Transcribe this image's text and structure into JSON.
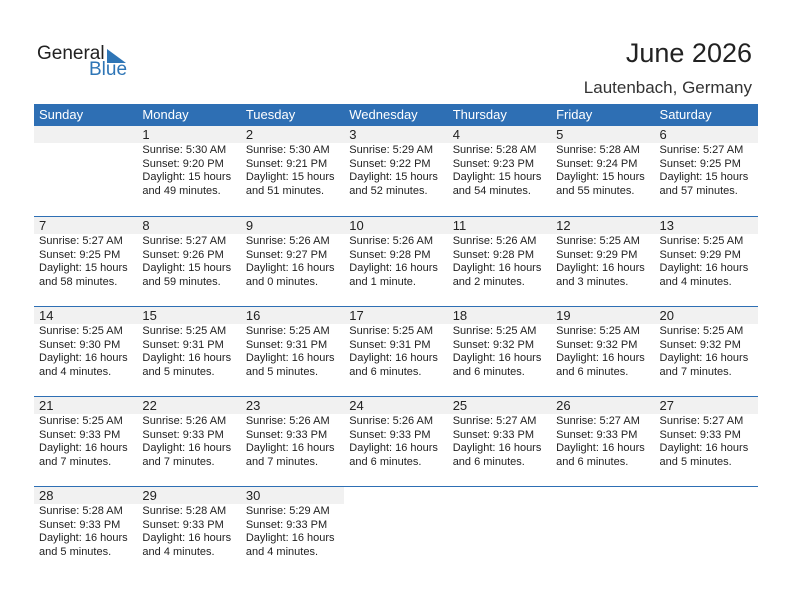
{
  "logo": {
    "line1": "General",
    "line2": "Blue"
  },
  "title": "June 2026",
  "location": "Lautenbach, Germany",
  "weekdays": [
    "Sunday",
    "Monday",
    "Tuesday",
    "Wednesday",
    "Thursday",
    "Friday",
    "Saturday"
  ],
  "first_weekday_offset": 1,
  "days": [
    {
      "d": "1",
      "sunrise": "Sunrise: 5:30 AM",
      "sunset": "Sunset: 9:20 PM",
      "daylight1": "Daylight: 15 hours",
      "daylight2": "and 49 minutes."
    },
    {
      "d": "2",
      "sunrise": "Sunrise: 5:30 AM",
      "sunset": "Sunset: 9:21 PM",
      "daylight1": "Daylight: 15 hours",
      "daylight2": "and 51 minutes."
    },
    {
      "d": "3",
      "sunrise": "Sunrise: 5:29 AM",
      "sunset": "Sunset: 9:22 PM",
      "daylight1": "Daylight: 15 hours",
      "daylight2": "and 52 minutes."
    },
    {
      "d": "4",
      "sunrise": "Sunrise: 5:28 AM",
      "sunset": "Sunset: 9:23 PM",
      "daylight1": "Daylight: 15 hours",
      "daylight2": "and 54 minutes."
    },
    {
      "d": "5",
      "sunrise": "Sunrise: 5:28 AM",
      "sunset": "Sunset: 9:24 PM",
      "daylight1": "Daylight: 15 hours",
      "daylight2": "and 55 minutes."
    },
    {
      "d": "6",
      "sunrise": "Sunrise: 5:27 AM",
      "sunset": "Sunset: 9:25 PM",
      "daylight1": "Daylight: 15 hours",
      "daylight2": "and 57 minutes."
    },
    {
      "d": "7",
      "sunrise": "Sunrise: 5:27 AM",
      "sunset": "Sunset: 9:25 PM",
      "daylight1": "Daylight: 15 hours",
      "daylight2": "and 58 minutes."
    },
    {
      "d": "8",
      "sunrise": "Sunrise: 5:27 AM",
      "sunset": "Sunset: 9:26 PM",
      "daylight1": "Daylight: 15 hours",
      "daylight2": "and 59 minutes."
    },
    {
      "d": "9",
      "sunrise": "Sunrise: 5:26 AM",
      "sunset": "Sunset: 9:27 PM",
      "daylight1": "Daylight: 16 hours",
      "daylight2": "and 0 minutes."
    },
    {
      "d": "10",
      "sunrise": "Sunrise: 5:26 AM",
      "sunset": "Sunset: 9:28 PM",
      "daylight1": "Daylight: 16 hours",
      "daylight2": "and 1 minute."
    },
    {
      "d": "11",
      "sunrise": "Sunrise: 5:26 AM",
      "sunset": "Sunset: 9:28 PM",
      "daylight1": "Daylight: 16 hours",
      "daylight2": "and 2 minutes."
    },
    {
      "d": "12",
      "sunrise": "Sunrise: 5:25 AM",
      "sunset": "Sunset: 9:29 PM",
      "daylight1": "Daylight: 16 hours",
      "daylight2": "and 3 minutes."
    },
    {
      "d": "13",
      "sunrise": "Sunrise: 5:25 AM",
      "sunset": "Sunset: 9:29 PM",
      "daylight1": "Daylight: 16 hours",
      "daylight2": "and 4 minutes."
    },
    {
      "d": "14",
      "sunrise": "Sunrise: 5:25 AM",
      "sunset": "Sunset: 9:30 PM",
      "daylight1": "Daylight: 16 hours",
      "daylight2": "and 4 minutes."
    },
    {
      "d": "15",
      "sunrise": "Sunrise: 5:25 AM",
      "sunset": "Sunset: 9:31 PM",
      "daylight1": "Daylight: 16 hours",
      "daylight2": "and 5 minutes."
    },
    {
      "d": "16",
      "sunrise": "Sunrise: 5:25 AM",
      "sunset": "Sunset: 9:31 PM",
      "daylight1": "Daylight: 16 hours",
      "daylight2": "and 5 minutes."
    },
    {
      "d": "17",
      "sunrise": "Sunrise: 5:25 AM",
      "sunset": "Sunset: 9:31 PM",
      "daylight1": "Daylight: 16 hours",
      "daylight2": "and 6 minutes."
    },
    {
      "d": "18",
      "sunrise": "Sunrise: 5:25 AM",
      "sunset": "Sunset: 9:32 PM",
      "daylight1": "Daylight: 16 hours",
      "daylight2": "and 6 minutes."
    },
    {
      "d": "19",
      "sunrise": "Sunrise: 5:25 AM",
      "sunset": "Sunset: 9:32 PM",
      "daylight1": "Daylight: 16 hours",
      "daylight2": "and 6 minutes."
    },
    {
      "d": "20",
      "sunrise": "Sunrise: 5:25 AM",
      "sunset": "Sunset: 9:32 PM",
      "daylight1": "Daylight: 16 hours",
      "daylight2": "and 7 minutes."
    },
    {
      "d": "21",
      "sunrise": "Sunrise: 5:25 AM",
      "sunset": "Sunset: 9:33 PM",
      "daylight1": "Daylight: 16 hours",
      "daylight2": "and 7 minutes."
    },
    {
      "d": "22",
      "sunrise": "Sunrise: 5:26 AM",
      "sunset": "Sunset: 9:33 PM",
      "daylight1": "Daylight: 16 hours",
      "daylight2": "and 7 minutes."
    },
    {
      "d": "23",
      "sunrise": "Sunrise: 5:26 AM",
      "sunset": "Sunset: 9:33 PM",
      "daylight1": "Daylight: 16 hours",
      "daylight2": "and 7 minutes."
    },
    {
      "d": "24",
      "sunrise": "Sunrise: 5:26 AM",
      "sunset": "Sunset: 9:33 PM",
      "daylight1": "Daylight: 16 hours",
      "daylight2": "and 6 minutes."
    },
    {
      "d": "25",
      "sunrise": "Sunrise: 5:27 AM",
      "sunset": "Sunset: 9:33 PM",
      "daylight1": "Daylight: 16 hours",
      "daylight2": "and 6 minutes."
    },
    {
      "d": "26",
      "sunrise": "Sunrise: 5:27 AM",
      "sunset": "Sunset: 9:33 PM",
      "daylight1": "Daylight: 16 hours",
      "daylight2": "and 6 minutes."
    },
    {
      "d": "27",
      "sunrise": "Sunrise: 5:27 AM",
      "sunset": "Sunset: 9:33 PM",
      "daylight1": "Daylight: 16 hours",
      "daylight2": "and 5 minutes."
    },
    {
      "d": "28",
      "sunrise": "Sunrise: 5:28 AM",
      "sunset": "Sunset: 9:33 PM",
      "daylight1": "Daylight: 16 hours",
      "daylight2": "and 5 minutes."
    },
    {
      "d": "29",
      "sunrise": "Sunrise: 5:28 AM",
      "sunset": "Sunset: 9:33 PM",
      "daylight1": "Daylight: 16 hours",
      "daylight2": "and 4 minutes."
    },
    {
      "d": "30",
      "sunrise": "Sunrise: 5:29 AM",
      "sunset": "Sunset: 9:33 PM",
      "daylight1": "Daylight: 16 hours",
      "daylight2": "and 4 minutes."
    }
  ]
}
